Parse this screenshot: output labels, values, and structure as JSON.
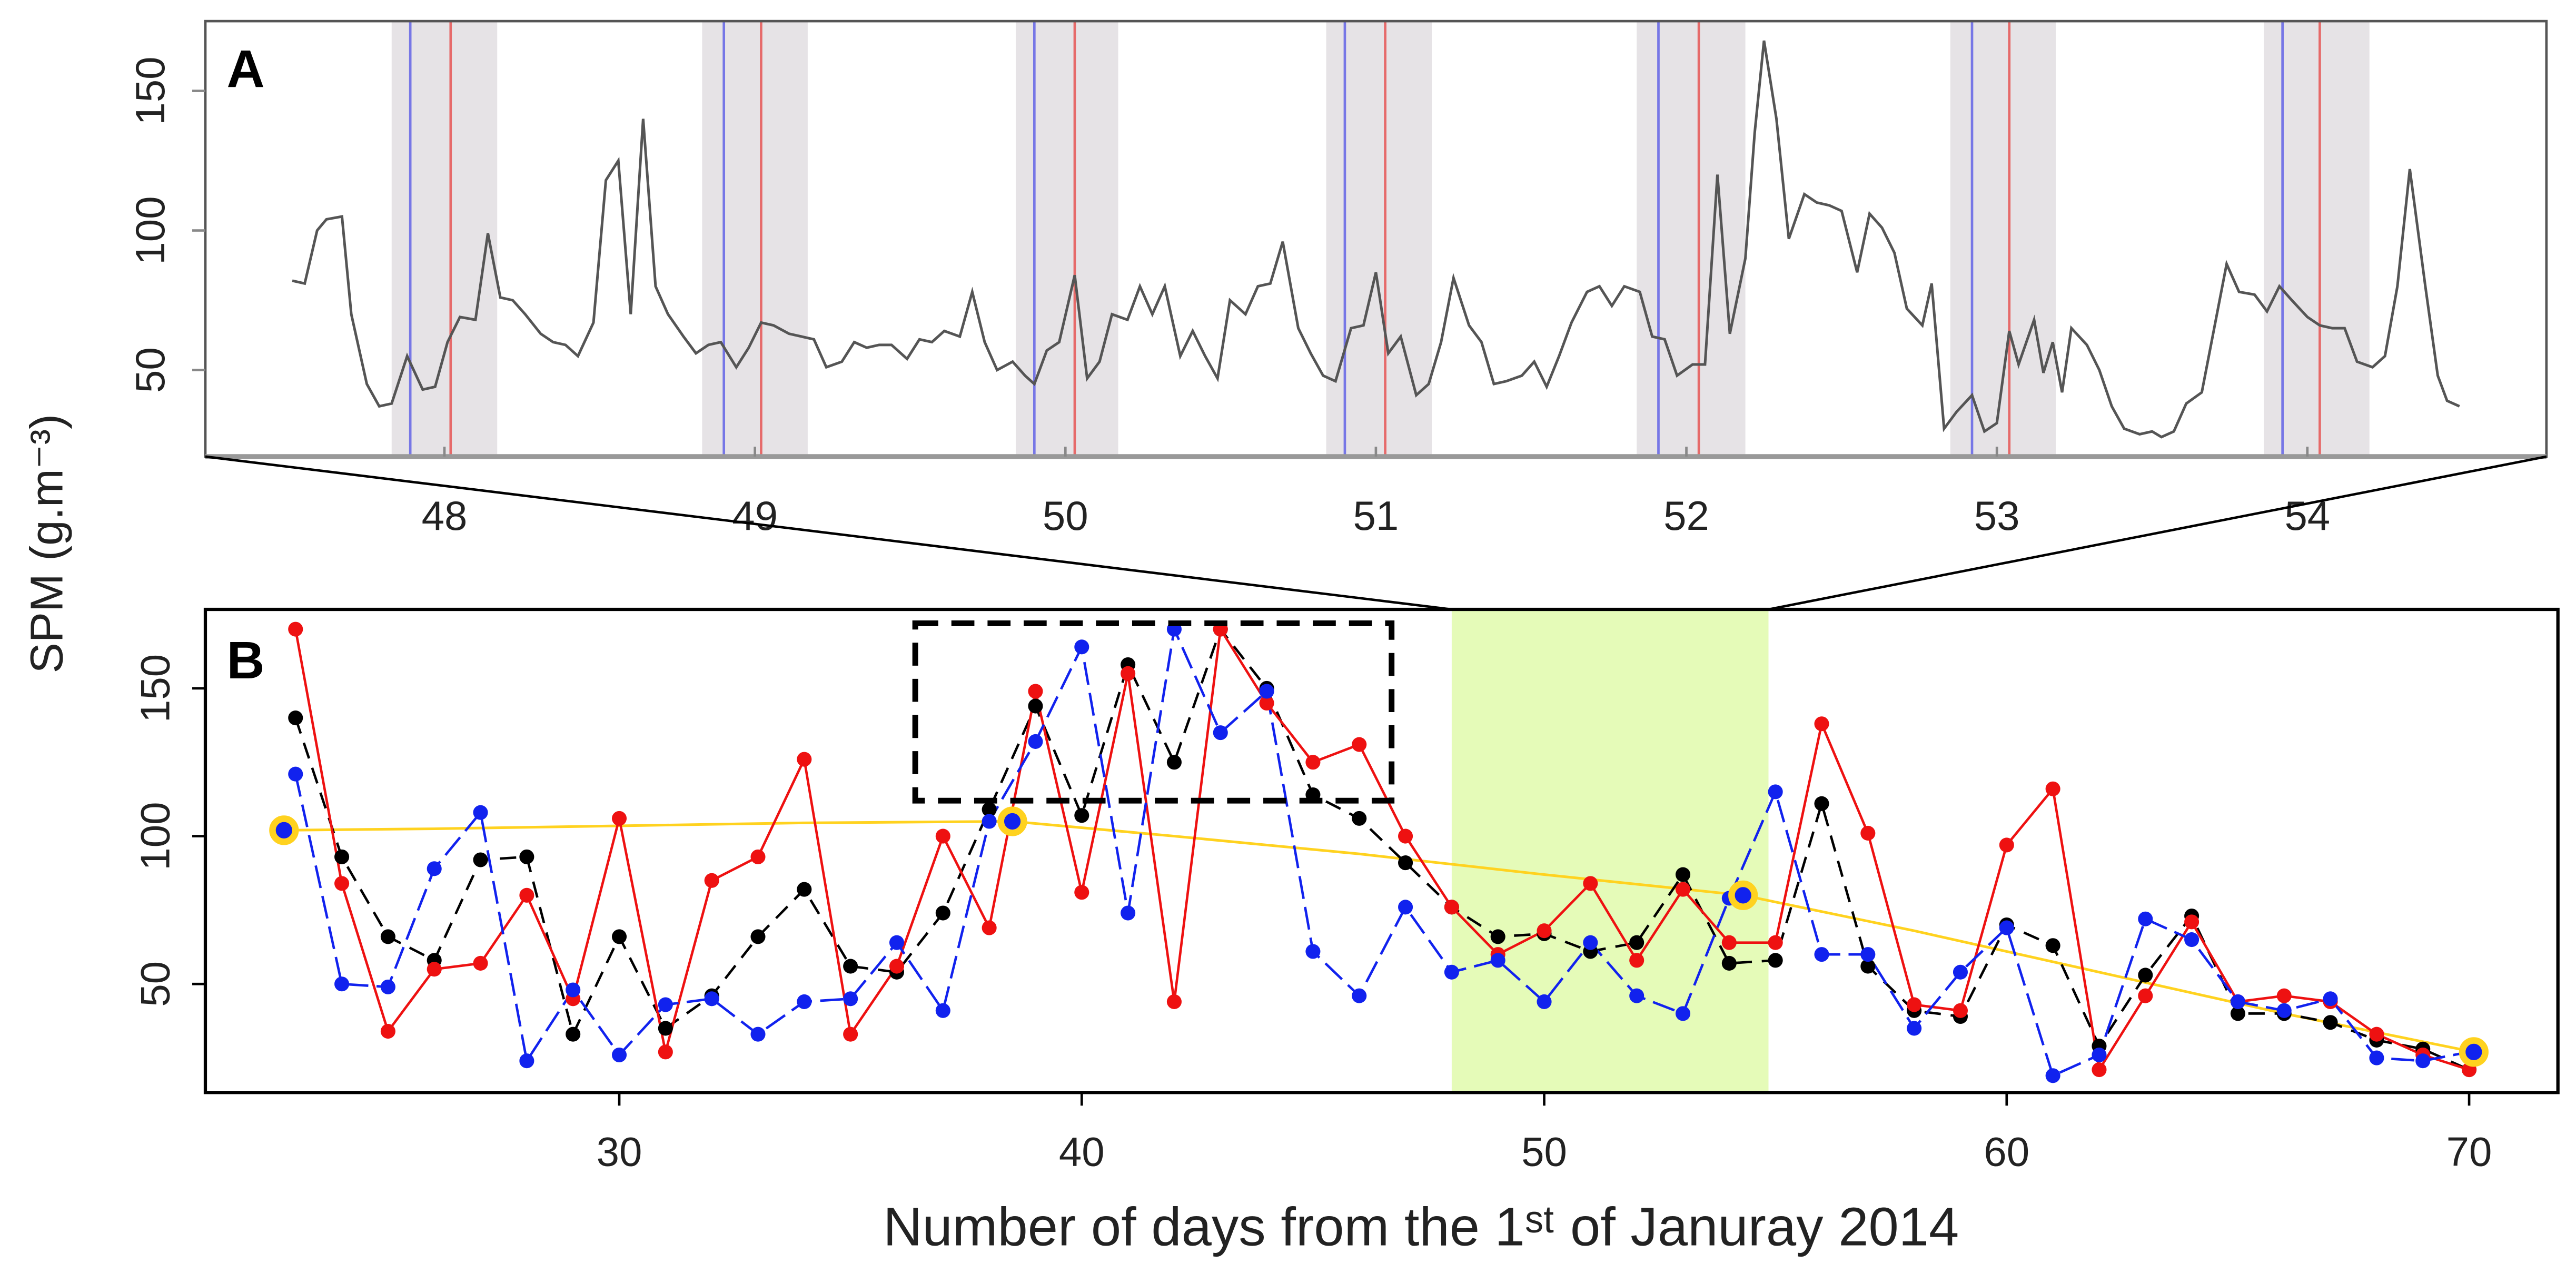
{
  "chart_data": [
    {
      "type": "line",
      "panel_label": "A",
      "x": [
        47.51,
        47.55,
        47.59,
        47.62,
        47.67,
        47.7,
        47.75,
        47.79,
        47.83,
        47.88,
        47.93,
        47.97,
        48.01,
        48.05,
        48.1,
        48.14,
        48.18,
        48.22,
        48.26,
        48.31,
        48.35,
        48.39,
        48.43,
        48.48,
        48.52,
        48.56,
        48.6,
        48.64,
        48.68,
        48.72,
        48.77,
        48.81,
        48.85,
        48.89,
        48.94,
        48.98,
        49.02,
        49.06,
        49.11,
        49.15,
        49.19,
        49.23,
        49.28,
        49.32,
        49.36,
        49.4,
        49.44,
        49.49,
        49.53,
        49.57,
        49.61,
        49.66,
        49.7,
        49.74,
        49.78,
        49.83,
        49.87,
        49.9,
        49.94,
        49.98,
        50.03,
        50.07,
        50.11,
        50.15,
        50.2,
        50.24,
        50.28,
        50.32,
        50.37,
        50.41,
        50.45,
        50.49,
        50.53,
        50.58,
        50.62,
        50.66,
        50.7,
        50.75,
        50.79,
        50.83,
        50.87,
        50.92,
        50.96,
        51.0,
        51.04,
        51.08,
        51.13,
        51.17,
        51.21,
        51.25,
        51.3,
        51.34,
        51.38,
        51.42,
        51.47,
        51.51,
        51.55,
        51.59,
        51.63,
        51.68,
        51.72,
        51.76,
        51.8,
        51.85,
        51.89,
        51.93,
        51.97,
        52.02,
        52.06,
        52.1,
        52.14,
        52.19,
        52.22,
        52.25,
        52.29,
        52.33,
        52.38,
        52.42,
        52.46,
        52.5,
        52.55,
        52.59,
        52.63,
        52.67,
        52.71,
        52.76,
        52.79,
        52.83,
        52.87,
        52.92,
        52.96,
        53.0,
        53.04,
        53.07,
        53.12,
        53.15,
        53.18,
        53.21,
        53.24,
        53.29,
        53.33,
        53.37,
        53.41,
        53.46,
        53.5,
        53.53,
        53.57,
        53.61,
        53.66,
        53.7,
        53.74,
        53.78,
        53.83,
        53.87,
        53.91,
        53.95,
        54.0,
        54.04,
        54.08,
        54.12,
        54.16,
        54.21,
        54.25,
        54.29,
        54.33,
        54.38,
        54.42,
        54.45,
        54.49
      ],
      "values": [
        82,
        81,
        100,
        104,
        105,
        70,
        45,
        37,
        38,
        55,
        43,
        44,
        60,
        69,
        68,
        99,
        76,
        75,
        70,
        63,
        60,
        59,
        55,
        67,
        118,
        125,
        70,
        140,
        80,
        70,
        62,
        56,
        59,
        60,
        51,
        58,
        67,
        66,
        63,
        62,
        61,
        51,
        53,
        60,
        58,
        59,
        59,
        54,
        61,
        60,
        64,
        62,
        78,
        60,
        50,
        53,
        48,
        45,
        57,
        60,
        84,
        47,
        53,
        70,
        68,
        80,
        70,
        80,
        55,
        64,
        55,
        47,
        75,
        70,
        80,
        81,
        96,
        65,
        56,
        48,
        46,
        65,
        66,
        85,
        56,
        62,
        41,
        45,
        60,
        83,
        66,
        60,
        45,
        46,
        48,
        53,
        44,
        55,
        67,
        78,
        80,
        73,
        80,
        78,
        62,
        61,
        48,
        52,
        52,
        120,
        63,
        90,
        135,
        168,
        140,
        97,
        113,
        110,
        109,
        107,
        85,
        106,
        101,
        92,
        72,
        66,
        81,
        29,
        35,
        41,
        28,
        31,
        64,
        52,
        68,
        49,
        60,
        42,
        65,
        59,
        50,
        37,
        29,
        27,
        28,
        26,
        28,
        38,
        42,
        65,
        88,
        78,
        77,
        71,
        80,
        75,
        69,
        66,
        65,
        65,
        53,
        51,
        55,
        80,
        122,
        80,
        48,
        39,
        37
      ],
      "color": "#555555",
      "xlim": [
        47.23,
        54.77
      ],
      "ylim": [
        19,
        175
      ],
      "xticks": [
        48,
        49,
        50,
        51,
        52,
        53,
        54
      ],
      "yticks": [
        50,
        100,
        150
      ],
      "bands": [
        [
          47.83,
          48.17
        ],
        [
          48.83,
          49.17
        ],
        [
          49.84,
          50.17
        ],
        [
          50.84,
          51.18
        ],
        [
          51.84,
          52.19
        ],
        [
          52.85,
          53.19
        ],
        [
          53.86,
          54.2
        ]
      ],
      "band_color": "#e6e3e6",
      "blue_lines": [
        47.89,
        48.9,
        49.9,
        50.9,
        51.91,
        52.92,
        53.92
      ],
      "blue_color": "#7777e6",
      "red_lines": [
        48.02,
        49.02,
        50.03,
        51.03,
        52.04,
        53.04,
        54.04
      ],
      "red_color": "#e66a6a"
    },
    {
      "type": "line",
      "panel_label": "B",
      "x": [
        23,
        24,
        25,
        26,
        27,
        28,
        29,
        30,
        31,
        32,
        33,
        34,
        35,
        36,
        37,
        38,
        39,
        40,
        41,
        42,
        43,
        44,
        45,
        46,
        47,
        48,
        49,
        50,
        51,
        52,
        53,
        54,
        55,
        56,
        57,
        58,
        59,
        60,
        61,
        62,
        63,
        64,
        65,
        66,
        67,
        68,
        69,
        70
      ],
      "series": [
        {
          "color": "#000000",
          "dash": "10,6",
          "values": [
            140,
            93,
            66,
            58,
            92,
            93,
            33,
            66,
            35,
            46,
            66,
            82,
            56,
            54,
            74,
            109,
            144,
            107,
            158,
            125,
            170,
            150,
            114,
            106,
            91,
            76,
            66,
            67,
            61,
            64,
            87,
            57,
            58,
            111,
            56,
            41,
            39,
            70,
            63,
            29,
            53,
            73,
            40,
            40,
            37,
            31,
            28,
            21
          ]
        },
        {
          "color": "#ee1111",
          "dash": "none",
          "values": [
            170,
            84,
            34,
            55,
            57,
            80,
            45,
            106,
            27,
            85,
            93,
            126,
            33,
            56,
            100,
            69,
            149,
            81,
            155,
            44,
            170,
            145,
            125,
            131,
            100,
            76,
            60,
            68,
            84,
            58,
            82,
            64,
            64,
            138,
            101,
            43,
            41,
            97,
            116,
            21,
            46,
            71,
            44,
            46,
            44,
            33,
            26,
            21
          ]
        },
        {
          "color": "#1122ee",
          "dash": "14,5",
          "values": [
            121,
            50,
            49,
            89,
            108,
            24,
            48,
            26,
            43,
            45,
            33,
            44,
            45,
            64,
            41,
            105,
            132,
            164,
            74,
            170,
            135,
            149,
            61,
            46,
            76,
            54,
            58,
            44,
            64,
            46,
            40,
            79,
            115,
            60,
            60,
            35,
            54,
            69,
            19,
            26,
            72,
            65,
            44,
            41,
            45,
            25,
            24,
            27
          ]
        }
      ],
      "trend": {
        "color": "#ffd21f",
        "x": [
          22.75,
          26,
          30,
          34,
          38.5,
          42,
          46,
          50,
          54.3,
          58,
          62,
          66,
          70.1
        ],
        "values": [
          102,
          102.5,
          103.5,
          104.5,
          105,
          100,
          94,
          87,
          80,
          68,
          54,
          40,
          27
        ]
      },
      "trend_points": {
        "color": "#ffd21f",
        "fill": "#1122ee",
        "x": [
          22.75,
          38.5,
          54.3,
          70.1
        ],
        "values": [
          102,
          105,
          80,
          27
        ]
      },
      "highlight_band": [
        48,
        54.85
      ],
      "highlight_color": "#e5fbb8",
      "highlight_box": {
        "x": [
          36.4,
          46.7
        ],
        "y": [
          112,
          172
        ]
      },
      "xlim": [
        21.05,
        71.92
      ],
      "ylim": [
        13.3,
        176.7
      ],
      "xticks": [
        30,
        40,
        50,
        60,
        70
      ],
      "yticks": [
        50,
        100,
        150
      ]
    }
  ],
  "y_label": "SPM (g.m⁻³)",
  "x_label": "Number of days from the 1ˢᵗ of Januray 2014"
}
